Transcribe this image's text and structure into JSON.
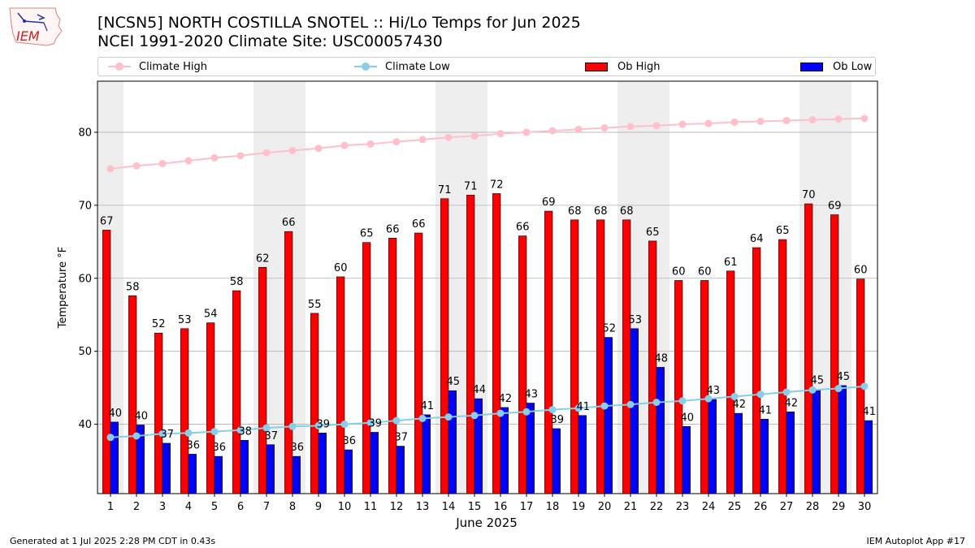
{
  "header": {
    "logo_text": "IEM",
    "title_line1": "[NCSN5] NORTH COSTILLA SNOTEL :: Hi/Lo Temps for Jun 2025",
    "title_line2": "NCEI 1991-2020 Climate Site: USC00057430"
  },
  "legend": {
    "climate_high": "Climate High",
    "climate_low": "Climate Low",
    "ob_high": "Ob High",
    "ob_low": "Ob Low"
  },
  "footer": {
    "generated": "Generated at 1 Jul 2025 2:28 PM CDT in 0.43s",
    "app": "IEM Autoplot App #17"
  },
  "colors": {
    "climate_high": "#ffc0cb",
    "climate_low": "#87ceeb",
    "ob_high": "#ff0000",
    "ob_low": "#0000ff",
    "weekend_band": "#eeeeee",
    "grid": "#b0b0b0"
  },
  "chart_data": {
    "type": "bar",
    "xlabel": "June 2025",
    "ylabel": "Temperature °F",
    "ylim": [
      30.5,
      87
    ],
    "yticks": [
      40,
      50,
      60,
      70,
      80
    ],
    "grid": "horizontal",
    "legend_placement": "top",
    "x": [
      1,
      2,
      3,
      4,
      5,
      6,
      7,
      8,
      9,
      10,
      11,
      12,
      13,
      14,
      15,
      16,
      17,
      18,
      19,
      20,
      21,
      22,
      23,
      24,
      25,
      26,
      27,
      28,
      29,
      30
    ],
    "shaded_days": [
      1,
      7,
      8,
      14,
      15,
      21,
      22,
      28,
      29
    ],
    "series": [
      {
        "name": "Ob High",
        "kind": "bar",
        "values": [
          66.6,
          57.6,
          52.5,
          53.1,
          53.9,
          58.3,
          61.5,
          66.4,
          55.2,
          60.2,
          64.9,
          65.5,
          66.2,
          70.9,
          71.4,
          71.6,
          65.8,
          69.2,
          68.0,
          68.0,
          68.0,
          65.1,
          59.7,
          59.7,
          61.0,
          64.2,
          65.3,
          70.2,
          68.7,
          59.9
        ],
        "labels": [
          67,
          58,
          52,
          53,
          54,
          58,
          62,
          66,
          55,
          60,
          65,
          66,
          66,
          71,
          71,
          72,
          66,
          69,
          68,
          68,
          68,
          65,
          60,
          60,
          61,
          64,
          65,
          70,
          69,
          60
        ]
      },
      {
        "name": "Ob Low",
        "kind": "bar",
        "values": [
          40.3,
          39.9,
          37.4,
          35.9,
          35.6,
          37.8,
          37.2,
          35.6,
          38.8,
          36.5,
          38.9,
          37.0,
          41.3,
          44.6,
          43.5,
          42.3,
          42.9,
          39.4,
          41.2,
          51.9,
          53.1,
          47.8,
          39.7,
          43.4,
          41.5,
          40.7,
          41.7,
          44.8,
          45.3,
          40.5
        ],
        "labels": [
          40,
          40,
          37,
          36,
          36,
          38,
          37,
          36,
          39,
          36,
          39,
          37,
          41,
          45,
          44,
          42,
          43,
          39,
          41,
          52,
          53,
          48,
          40,
          43,
          42,
          41,
          42,
          45,
          45,
          41
        ]
      },
      {
        "name": "Climate High",
        "kind": "line",
        "values": [
          75.0,
          75.4,
          75.7,
          76.1,
          76.5,
          76.8,
          77.2,
          77.5,
          77.8,
          78.2,
          78.4,
          78.7,
          79.0,
          79.3,
          79.5,
          79.8,
          80.0,
          80.2,
          80.4,
          80.6,
          80.8,
          80.9,
          81.1,
          81.2,
          81.4,
          81.5,
          81.6,
          81.7,
          81.8,
          81.9
        ]
      },
      {
        "name": "Climate Low",
        "kind": "line",
        "values": [
          38.2,
          38.4,
          38.7,
          38.8,
          39.0,
          39.2,
          39.5,
          39.7,
          39.8,
          40.0,
          40.2,
          40.5,
          40.8,
          41.0,
          41.2,
          41.5,
          41.7,
          42.0,
          42.2,
          42.5,
          42.7,
          43.0,
          43.2,
          43.5,
          43.8,
          44.1,
          44.4,
          44.7,
          44.9,
          45.2
        ]
      }
    ]
  }
}
